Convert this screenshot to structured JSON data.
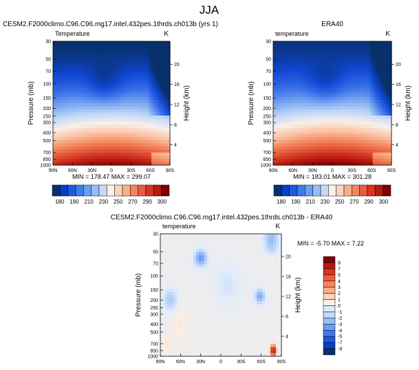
{
  "figure": {
    "title": "JJA"
  },
  "chart_data": [
    {
      "type": "heatmap",
      "id": "model",
      "title": "CESM2.F2000climo.C96.C96.mg17.intel.432pes.1thrds.ch013b (yrs 1)",
      "field_label": "Temperature",
      "units_label": "K",
      "ylabel": "Pressure (mb)",
      "ylabel_right": "Height (km)",
      "x_ticks": [
        "90N",
        "60N",
        "30N",
        "0",
        "30S",
        "60S",
        "90S"
      ],
      "x_values": [
        90,
        60,
        30,
        0,
        -30,
        -60,
        -90
      ],
      "y_ticks": [
        "30",
        "50",
        "70",
        "100",
        "150",
        "200",
        "250",
        "300",
        "400",
        "500",
        "700",
        "850",
        "1000"
      ],
      "y_values": [
        30,
        50,
        70,
        100,
        150,
        200,
        250,
        300,
        400,
        500,
        700,
        850,
        1000
      ],
      "y_log_scale": true,
      "height_ticks": [
        "20",
        "16",
        "12",
        "8",
        "4"
      ],
      "height_values": [
        20,
        16,
        12,
        8,
        4
      ],
      "stats": {
        "min": "178.47",
        "max": "299.07"
      },
      "stats_text": "MIN = 178.47   MAX = 299.07"
    },
    {
      "type": "heatmap",
      "id": "obs",
      "title": "ERA40",
      "field_label": "temperature",
      "units_label": "K",
      "ylabel": "Pressure (mb)",
      "ylabel_right": "Height (km)",
      "x_ticks": [
        "90N",
        "60N",
        "30N",
        "0",
        "30S",
        "60S",
        "90S"
      ],
      "x_values": [
        90,
        60,
        30,
        0,
        -30,
        -60,
        -90
      ],
      "y_ticks": [
        "30",
        "50",
        "70",
        "100",
        "150",
        "200",
        "250",
        "300",
        "400",
        "500",
        "700",
        "850",
        "1000"
      ],
      "y_values": [
        30,
        50,
        70,
        100,
        150,
        200,
        250,
        300,
        400,
        500,
        700,
        850,
        1000
      ],
      "y_log_scale": true,
      "height_ticks": [
        "20",
        "16",
        "12",
        "8",
        "4"
      ],
      "height_values": [
        20,
        16,
        12,
        8,
        4
      ],
      "stats": {
        "min": "183.01",
        "max": "301.28"
      },
      "stats_text": "MIN = 183.01   MAX = 301.28"
    },
    {
      "type": "heatmap",
      "id": "diff",
      "title": "CESM2.F2000climo.C96.C96.mg17.intel.432pes.1thrds.ch013b - ERA40",
      "field_label": "temperature",
      "units_label": "K",
      "ylabel": "Pressure (mb)",
      "ylabel_right": "Height (km)",
      "x_ticks": [
        "90N",
        "60N",
        "30N",
        "0",
        "30S",
        "60S",
        "90S"
      ],
      "x_values": [
        90,
        60,
        30,
        0,
        -30,
        -60,
        -90
      ],
      "y_ticks": [
        "30",
        "50",
        "70",
        "100",
        "150",
        "200",
        "250",
        "300",
        "400",
        "500",
        "700",
        "850",
        "1000"
      ],
      "y_values": [
        30,
        50,
        70,
        100,
        150,
        200,
        250,
        300,
        400,
        500,
        700,
        850,
        1000
      ],
      "y_log_scale": true,
      "height_ticks": [
        "20",
        "16",
        "12",
        "8",
        "4"
      ],
      "height_values": [
        20,
        16,
        12,
        8,
        4
      ],
      "stats": {
        "min": "-5.70",
        "max": "7.22"
      },
      "stats_text": "MIN = -5.70  MAX =  7.22"
    }
  ],
  "colorbars": {
    "top": {
      "labels": [
        "180",
        "190",
        "210",
        "230",
        "250",
        "270",
        "290",
        "300"
      ],
      "colors": [
        "#08306b",
        "#0a3fc4",
        "#1c5ae0",
        "#3f7be8",
        "#6b9ef0",
        "#98bdf5",
        "#c3d9f8",
        "#fdf0e6",
        "#fcd2b9",
        "#f9ad8a",
        "#f48560",
        "#ea5c3b",
        "#d8331f",
        "#b51a12",
        "#7f0000"
      ]
    },
    "diff": {
      "labels": [
        "9",
        "7",
        "5",
        "4",
        "3",
        "2",
        "1",
        "0",
        "-1",
        "-2",
        "-3",
        "-4",
        "-5",
        "-7",
        "-9"
      ],
      "colors": [
        "#7f0000",
        "#b01a10",
        "#d8331f",
        "#ea5c3b",
        "#f48560",
        "#f9ad8a",
        "#fcd2b9",
        "#fdf0e6",
        "#ddeafa",
        "#c3d9f8",
        "#98bdf5",
        "#6b9ef0",
        "#3f7be8",
        "#1c5ae0",
        "#0a3fc4",
        "#08306b"
      ]
    }
  }
}
